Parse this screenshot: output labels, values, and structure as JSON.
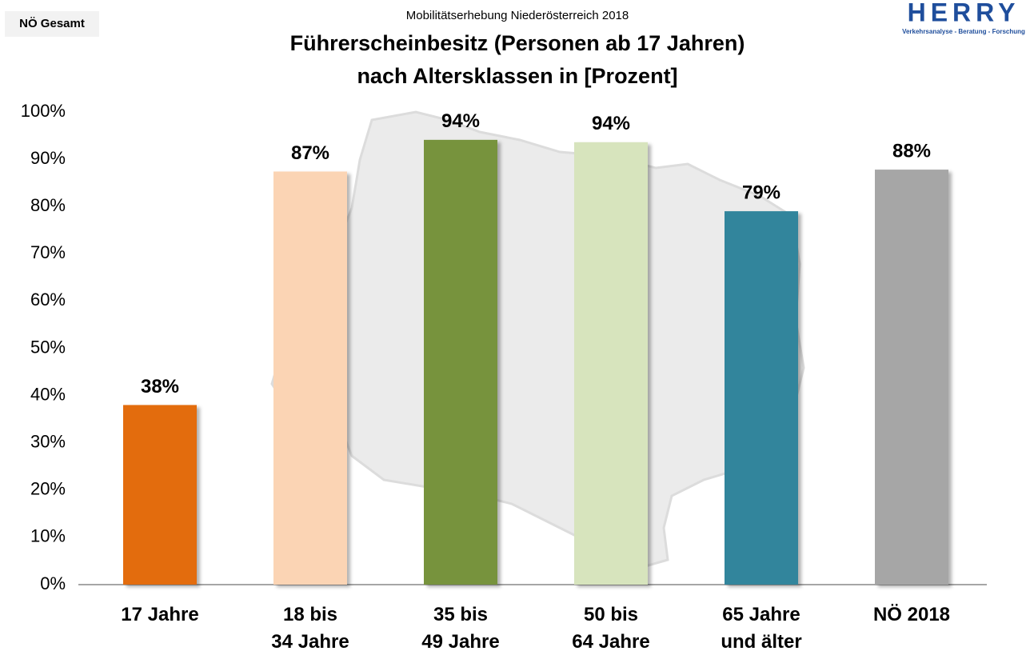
{
  "header": {
    "badge": "NÖ Gesamt",
    "logo": "HERRY",
    "logo_tagline": "Verkehrsanalyse - Beratung - Forschung"
  },
  "chart_data": {
    "type": "bar",
    "subtitle": "Mobilitätserhebung Niederösterreich 2018",
    "title": [
      "Führerscheinbesitz (Personen ab 17 Jahren)",
      "nach Altersklassen in [Prozent]"
    ],
    "categories": [
      [
        "17 Jahre"
      ],
      [
        "18 bis",
        "34 Jahre"
      ],
      [
        "35 bis",
        "49 Jahre"
      ],
      [
        "50 bis",
        "64 Jahre"
      ],
      [
        "65 Jahre",
        "und älter"
      ],
      [
        "NÖ 2018"
      ]
    ],
    "values": [
      38,
      87.4,
      94.1,
      93.6,
      79,
      87.8
    ],
    "value_labels": [
      "38%",
      "87%",
      "94%",
      "94%",
      "79%",
      "88%"
    ],
    "colors": [
      "#e36c0a",
      "#fbd4b4",
      "#77933c",
      "#d7e4bd",
      "#31859c",
      "#a6a6a6"
    ],
    "ylim": [
      0,
      100
    ],
    "yticks": [
      {
        "value": 0,
        "label": "0%"
      },
      {
        "value": 10,
        "label": "10%"
      },
      {
        "value": 20,
        "label": "20%"
      },
      {
        "value": 30,
        "label": "30%"
      },
      {
        "value": 40,
        "label": "40%"
      },
      {
        "value": 50,
        "label": "50%"
      },
      {
        "value": 60,
        "label": "60%"
      },
      {
        "value": 70,
        "label": "70%"
      },
      {
        "value": 80,
        "label": "80%"
      },
      {
        "value": 90,
        "label": "90%"
      },
      {
        "value": 100,
        "label": "100%"
      }
    ],
    "grid": false
  }
}
